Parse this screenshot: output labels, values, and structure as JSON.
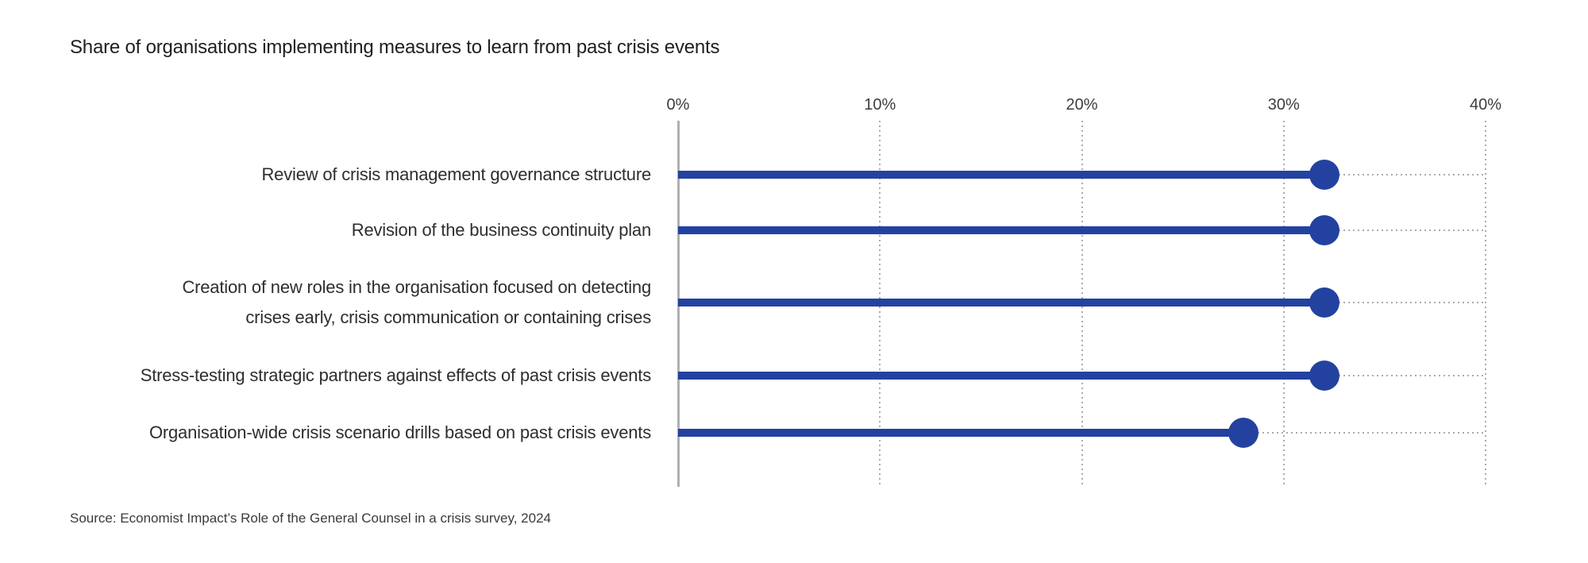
{
  "header": {
    "title": "Share of organisations implementing measures to learn from past crisis events"
  },
  "footer": {
    "source_note": "Source: Economist Impact’s Role of the General Counsel in a crisis survey, 2024"
  },
  "colors": {
    "background": "#ffffff",
    "accent_blue": "#2342a0",
    "axis_gray": "#b0b0b0",
    "grid_dot_gray": "#ababab",
    "title_text": "#1f1f1f",
    "category_text": "#2e2e2e",
    "tick_text": "#3d3d3d",
    "source_text": "#3a3a3a"
  },
  "chart_data": {
    "type": "bar",
    "style": "lollipop",
    "orientation": "horizontal",
    "title": "Share of organisations implementing measures to learn from past crisis events",
    "categories": [
      "Review of crisis management governance structure",
      "Revision of the business continuity plan",
      "Creation of new roles in the organisation focused on detecting crises early, crisis communication or containing crises",
      "Stress-testing strategic partners against effects of past crisis events",
      "Organisation-wide crisis scenario drills based on past crisis events"
    ],
    "category_lines": [
      [
        "Review of crisis management governance structure"
      ],
      [
        "Revision of the business continuity plan"
      ],
      [
        "Creation of new roles in the organisation focused on detecting",
        "crises early, crisis communication or containing crises"
      ],
      [
        "Stress-testing strategic partners against effects of past crisis events"
      ],
      [
        "Organisation-wide crisis scenario drills based on past crisis events"
      ]
    ],
    "values": [
      32,
      32,
      32,
      32,
      28
    ],
    "unit": "%",
    "xlabel": "",
    "ylabel": "",
    "xlim": [
      0,
      40
    ],
    "x_ticks": [
      0,
      10,
      20,
      30,
      40
    ],
    "x_tick_labels": [
      "0%",
      "10%",
      "20%",
      "30%",
      "40%"
    ],
    "grid": "dotted vertical gridlines at ticks; dotted leader line from each dot to right edge; solid gray zero axis",
    "legend": "none"
  }
}
